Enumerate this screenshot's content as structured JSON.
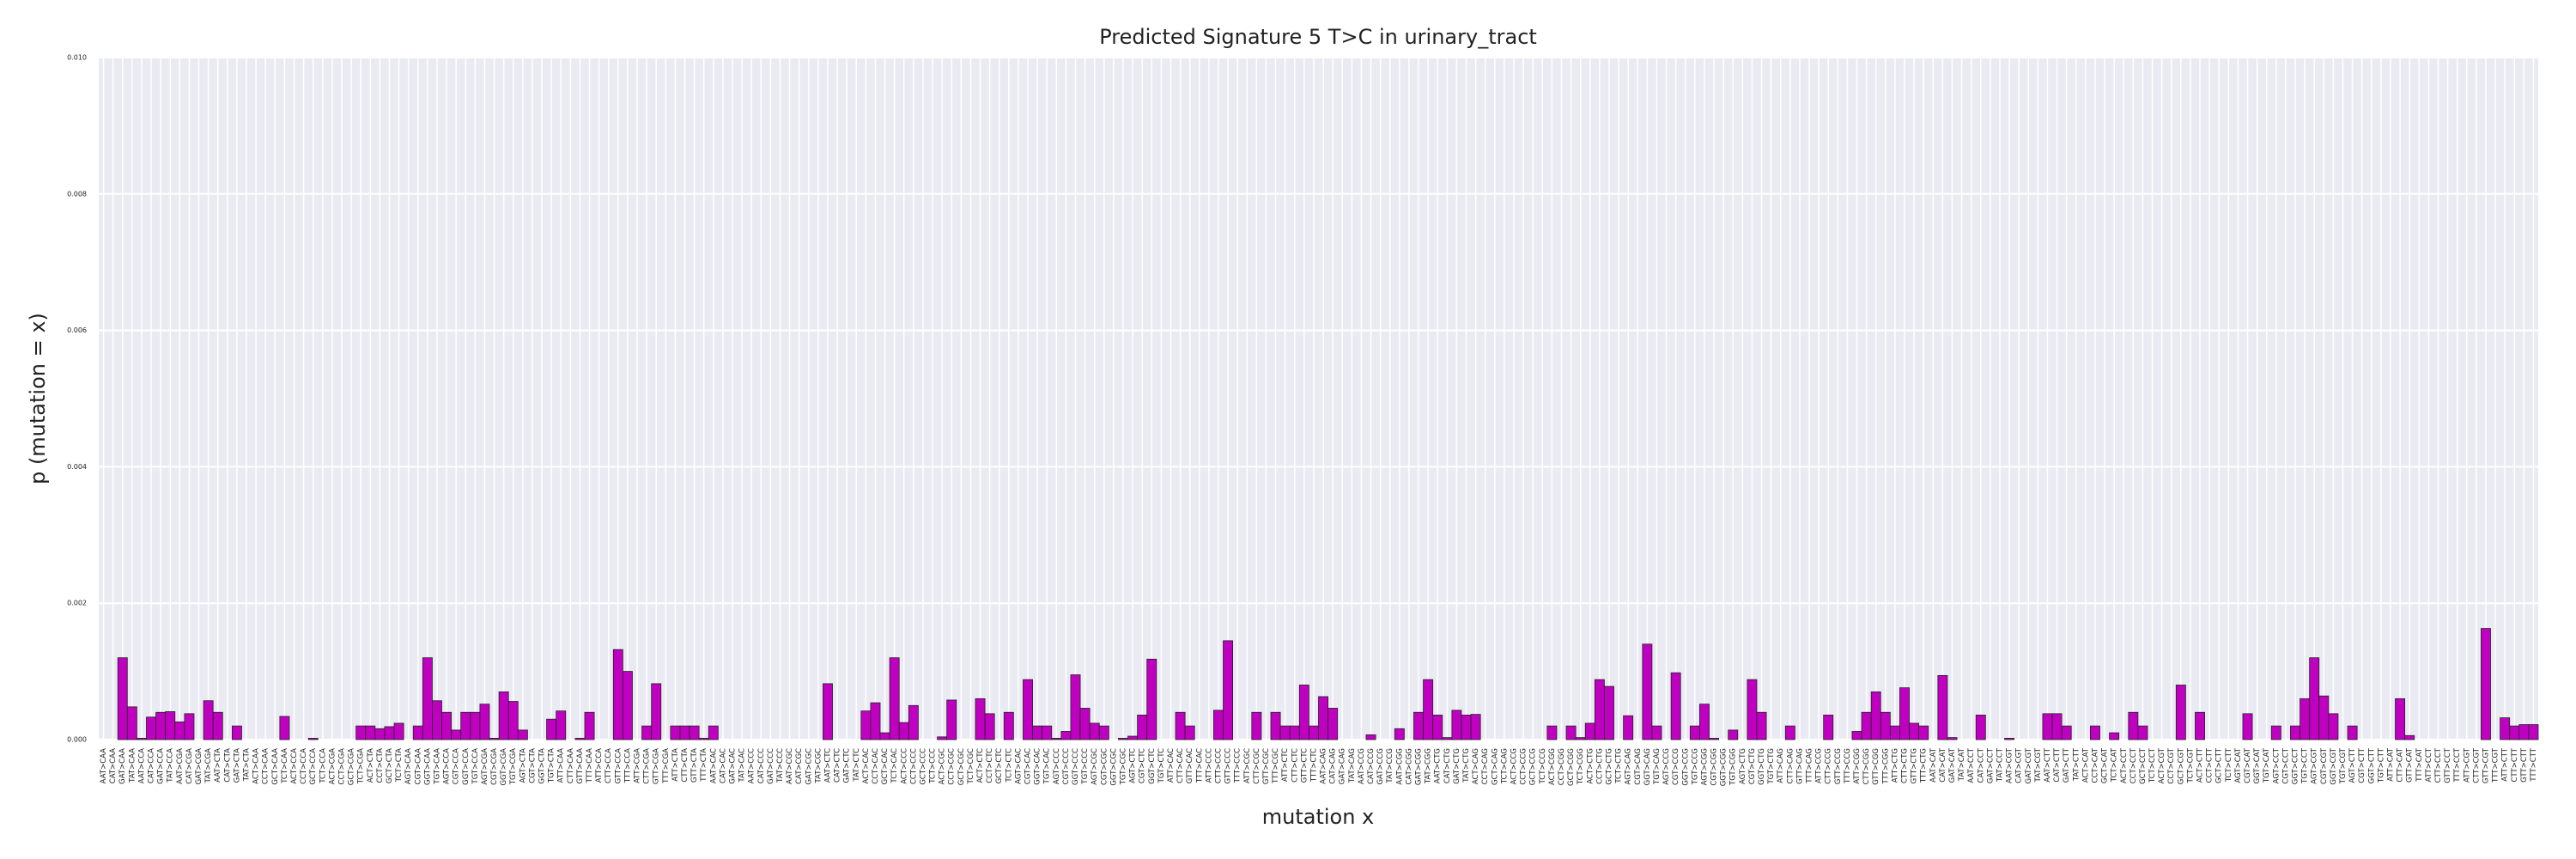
{
  "chart_data": {
    "type": "bar",
    "title": "Predicted Signature 5 T>C in urinary_tract",
    "x_label": "mutation x",
    "y_label": "p (mutation = x)",
    "color": "#c000c0",
    "grid": true,
    "ylim": [
      0,
      0.01
    ],
    "yticks": [
      {
        "value": 0,
        "label": "0.000"
      },
      0.002,
      0.004,
      0.006,
      0.008,
      {
        "value": 0.01,
        "label": "0.010"
      }
    ],
    "categories": [
      "AAT>CAA",
      "CAT>CAA",
      "GAT>CAA",
      "TAT>CAA",
      "AAT>CCA",
      "CAT>CCA",
      "GAT>CCA",
      "TAT>CCA",
      "AAT>CGA",
      "CAT>CGA",
      "GAT>CGA",
      "TAT>CGA",
      "AAT>CTA",
      "CAT>CTA",
      "GAT>CTA",
      "TAT>CTA",
      "ACT>CAA",
      "CCT>CAA",
      "GCT>CAA",
      "TCT>CAA",
      "ACT>CCA",
      "CCT>CCA",
      "GCT>CCA",
      "TCT>CCA",
      "ACT>CGA",
      "CCT>CGA",
      "GCT>CGA",
      "TCT>CGA",
      "ACT>CTA",
      "CCT>CTA",
      "GCT>CTA",
      "TCT>CTA",
      "AGT>CAA",
      "CGT>CAA",
      "GGT>CAA",
      "TGT>CAA",
      "AGT>CCA",
      "CGT>CCA",
      "GGT>CCA",
      "TGT>CCA",
      "AGT>CGA",
      "CGT>CGA",
      "GGT>CGA",
      "TGT>CGA",
      "AGT>CTA",
      "CGT>CTA",
      "GGT>CTA",
      "TGT>CTA",
      "ATT>CAA",
      "CTT>CAA",
      "GTT>CAA",
      "TTT>CAA",
      "ATT>CCA",
      "CTT>CCA",
      "GTT>CCA",
      "TTT>CCA",
      "ATT>CGA",
      "CTT>CGA",
      "GTT>CGA",
      "TTT>CGA",
      "ATT>CTA",
      "CTT>CTA",
      "GTT>CTA",
      "TTT>CTA",
      "AAT>CAC",
      "CAT>CAC",
      "GAT>CAC",
      "TAT>CAC",
      "AAT>CCC",
      "CAT>CCC",
      "GAT>CCC",
      "TAT>CCC",
      "AAT>CGC",
      "CAT>CGC",
      "GAT>CGC",
      "TAT>CGC",
      "AAT>CTC",
      "CAT>CTC",
      "GAT>CTC",
      "TAT>CTC",
      "ACT>CAC",
      "CCT>CAC",
      "GCT>CAC",
      "TCT>CAC",
      "ACT>CCC",
      "CCT>CCC",
      "GCT>CCC",
      "TCT>CCC",
      "ACT>CGC",
      "CCT>CGC",
      "GCT>CGC",
      "TCT>CGC",
      "ACT>CTC",
      "CCT>CTC",
      "GCT>CTC",
      "TCT>CTC",
      "AGT>CAC",
      "CGT>CAC",
      "GGT>CAC",
      "TGT>CAC",
      "AGT>CCC",
      "CGT>CCC",
      "GGT>CCC",
      "TGT>CCC",
      "AGT>CGC",
      "CGT>CGC",
      "GGT>CGC",
      "TGT>CGC",
      "AGT>CTC",
      "CGT>CTC",
      "GGT>CTC",
      "TGT>CTC",
      "ATT>CAC",
      "CTT>CAC",
      "GTT>CAC",
      "TTT>CAC",
      "ATT>CCC",
      "CTT>CCC",
      "GTT>CCC",
      "TTT>CCC",
      "ATT>CGC",
      "CTT>CGC",
      "GTT>CGC",
      "TTT>CGC",
      "ATT>CTC",
      "CTT>CTC",
      "GTT>CTC",
      "TTT>CTC",
      "AAT>CAG",
      "CAT>CAG",
      "GAT>CAG",
      "TAT>CAG",
      "AAT>CCG",
      "CAT>CCG",
      "GAT>CCG",
      "TAT>CCG",
      "AAT>CGG",
      "CAT>CGG",
      "GAT>CGG",
      "TAT>CGG",
      "AAT>CTG",
      "CAT>CTG",
      "GAT>CTG",
      "TAT>CTG",
      "ACT>CAG",
      "CCT>CAG",
      "GCT>CAG",
      "TCT>CAG",
      "ACT>CCG",
      "CCT>CCG",
      "GCT>CCG",
      "TCT>CCG",
      "ACT>CGG",
      "CCT>CGG",
      "GCT>CGG",
      "TCT>CGG",
      "ACT>CTG",
      "CCT>CTG",
      "GCT>CTG",
      "TCT>CTG",
      "AGT>CAG",
      "CGT>CAG",
      "GGT>CAG",
      "TGT>CAG",
      "AGT>CCG",
      "CGT>CCG",
      "GGT>CCG",
      "TGT>CCG",
      "AGT>CGG",
      "CGT>CGG",
      "GGT>CGG",
      "TGT>CGG",
      "AGT>CTG",
      "CGT>CTG",
      "GGT>CTG",
      "TGT>CTG",
      "ATT>CAG",
      "CTT>CAG",
      "GTT>CAG",
      "TTT>CAG",
      "ATT>CCG",
      "CTT>CCG",
      "GTT>CCG",
      "TTT>CCG",
      "ATT>CGG",
      "CTT>CGG",
      "GTT>CGG",
      "TTT>CGG",
      "ATT>CTG",
      "CTT>CTG",
      "GTT>CTG",
      "TTT>CTG",
      "AAT>CAT",
      "CAT>CAT",
      "GAT>CAT",
      "TAT>CAT",
      "AAT>CCT",
      "CAT>CCT",
      "GAT>CCT",
      "TAT>CCT",
      "AAT>CGT",
      "CAT>CGT",
      "GAT>CGT",
      "TAT>CGT",
      "AAT>CTT",
      "CAT>CTT",
      "GAT>CTT",
      "TAT>CTT",
      "ACT>CAT",
      "CCT>CAT",
      "GCT>CAT",
      "TCT>CAT",
      "ACT>CCT",
      "CCT>CCT",
      "GCT>CCT",
      "TCT>CCT",
      "ACT>CGT",
      "CCT>CGT",
      "GCT>CGT",
      "TCT>CGT",
      "ACT>CTT",
      "CCT>CTT",
      "GCT>CTT",
      "TCT>CTT",
      "AGT>CAT",
      "CGT>CAT",
      "GGT>CAT",
      "TGT>CAT",
      "AGT>CCT",
      "CGT>CCT",
      "GGT>CCT",
      "TGT>CCT",
      "AGT>CGT",
      "CGT>CGT",
      "GGT>CGT",
      "TGT>CGT",
      "AGT>CTT",
      "CGT>CTT",
      "GGT>CTT",
      "TGT>CTT",
      "ATT>CAT",
      "CTT>CAT",
      "GTT>CAT",
      "TTT>CAT",
      "ATT>CCT",
      "CTT>CCT",
      "GTT>CCT",
      "TTT>CCT",
      "ATT>CGT",
      "CTT>CGT",
      "GTT>CGT",
      "TTT>CGT",
      "ATT>CTT",
      "CTT>CTT",
      "GTT>CTT",
      "TTT>CTT"
    ],
    "values": [
      0,
      0,
      0.0012,
      0.00048,
      2e-05,
      0.00033,
      0.0004,
      0.00041,
      0.00026,
      0.00038,
      0,
      0.00057,
      0.0004,
      0,
      0.0002,
      0,
      0,
      0,
      0,
      0.00034,
      0,
      0,
      2e-05,
      0,
      0,
      0,
      0,
      0.0002,
      0.0002,
      0.00016,
      0.00019,
      0.00024,
      0,
      0.0002,
      0.0012,
      0.00057,
      0.0004,
      0.00014,
      0.0004,
      0.0004,
      0.00052,
      2e-05,
      0.0007,
      0.00056,
      0.00014,
      0,
      0,
      0.0003,
      0.00042,
      0,
      2e-05,
      0.0004,
      0,
      0,
      0.00132,
      0.001,
      0,
      0.0002,
      0.00082,
      0,
      0.0002,
      0.0002,
      0.0002,
      2e-05,
      0.0002,
      0,
      0,
      0,
      0,
      0,
      0,
      0,
      0,
      0,
      0,
      0,
      0.00082,
      0,
      0,
      0,
      0.00042,
      0.00054,
      0.0001,
      0.0012,
      0.00025,
      0.0005,
      0,
      0,
      4e-05,
      0.00058,
      0,
      0,
      0.0006,
      0.00038,
      0,
      0.0004,
      0,
      0.00088,
      0.0002,
      0.0002,
      2e-05,
      0.00012,
      0.00095,
      0.00046,
      0.00024,
      0.0002,
      0,
      2e-05,
      5e-05,
      0.00036,
      0.00118,
      0,
      0,
      0.0004,
      0.0002,
      0,
      0,
      0.00043,
      0.00145,
      0,
      0,
      0.0004,
      0,
      0.0004,
      0.0002,
      0.0002,
      0.0008,
      0.0002,
      0.00063,
      0.00046,
      0,
      0,
      0,
      7e-05,
      0,
      0,
      0.00016,
      0,
      0.0004,
      0.00088,
      0.00036,
      3e-05,
      0.00043,
      0.00036,
      0.00037,
      0,
      0,
      0,
      0,
      0,
      0,
      0,
      0.0002,
      0,
      0.0002,
      3e-05,
      0.00024,
      0.00088,
      0.00078,
      0,
      0.00035,
      0,
      0.0014,
      0.0002,
      0,
      0.00098,
      0,
      0.0002,
      0.00052,
      2e-05,
      0,
      0.00014,
      0,
      0.00088,
      0.0004,
      0,
      0,
      0.0002,
      0,
      0,
      0,
      0.00036,
      0,
      0,
      0.00012,
      0.0004,
      0.0007,
      0.0004,
      0.0002,
      0.00076,
      0.00024,
      0.0002,
      0,
      0.00094,
      3e-05,
      0,
      0,
      0.00036,
      0,
      0,
      2e-05,
      0,
      0,
      0,
      0.00038,
      0.00038,
      0.0002,
      0,
      0,
      0.0002,
      0,
      0.0001,
      0,
      0.0004,
      0.0002,
      0,
      0,
      0,
      0.0008,
      0,
      0.0004,
      0,
      0,
      0,
      0,
      0.00038,
      0,
      0,
      0.0002,
      0,
      0.0002,
      0.0006,
      0.0012,
      0.00064,
      0.00038,
      0,
      0.0002,
      0,
      0,
      0,
      0,
      0.0006,
      6e-05,
      0,
      0,
      0,
      0,
      0,
      0,
      0,
      0.00163,
      0,
      0.00032,
      0.0002,
      0.00022,
      0.00022
    ]
  }
}
